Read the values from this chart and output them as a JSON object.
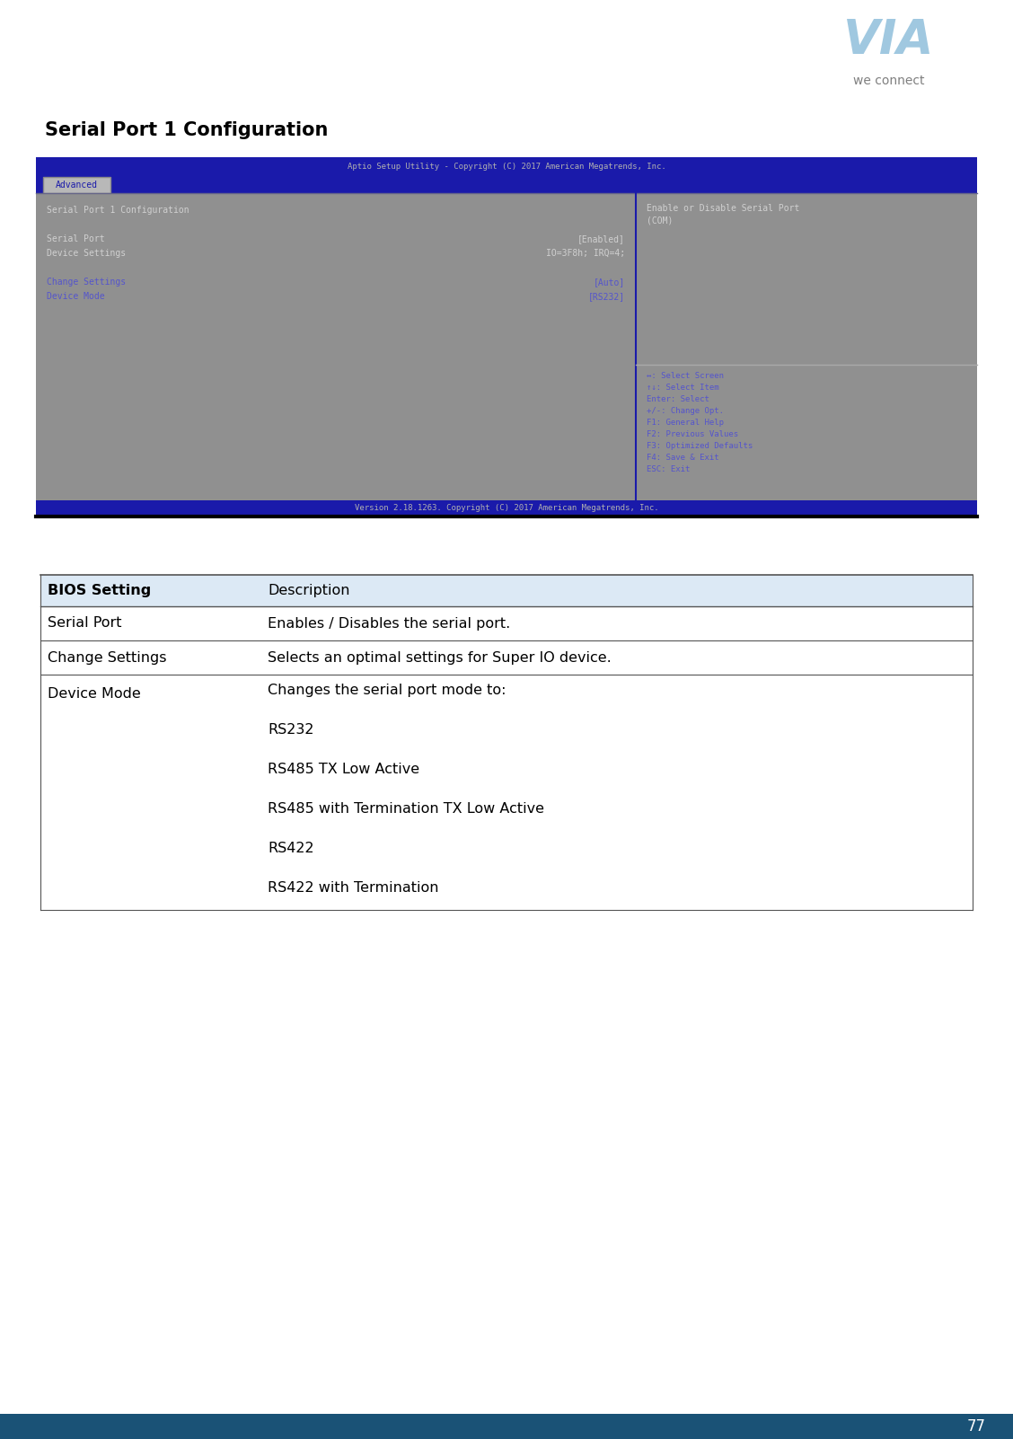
{
  "page_title": "Serial Port 1 Configuration",
  "page_number": "77",
  "background_color": "#ffffff",
  "title_fontsize": 15,
  "bios_header_bg": "#dce9f5",
  "bios_border_color": "#555555",
  "table_headers": [
    "BIOS Setting",
    "Description"
  ],
  "table_row1": [
    "Serial Port",
    "Enables / Disables the serial port."
  ],
  "table_row2": [
    "Change Settings",
    "Selects an optimal settings for Super IO device."
  ],
  "table_row3_col1": "Device Mode",
  "table_row3_col2_lines": [
    "Changes the serial port mode to:",
    "",
    "RS232",
    "",
    "RS485 TX Low Active",
    "",
    "RS485 with Termination TX Low Active",
    "",
    "RS422",
    "",
    "RS422 with Termination"
  ],
  "bios_screen_bg": "#909090",
  "bios_screen_border_color": "#1a1aaa",
  "bios_screen_header_bg": "#1a1aaa",
  "bios_screen_header_text": "Aptio Setup Utility - Copyright (C) 2017 American Megatrends, Inc.",
  "bios_screen_header_color": "#b0b0b0",
  "bios_tab_bg": "#b8b8b8",
  "bios_tab_text": "Advanced",
  "bios_tab_text_color": "#1a1aaa",
  "bios_menu_line_bg": "#1a1aaa",
  "bios_footer_bg": "#1a1aaa",
  "bios_footer_text": "Version 2.18.1263. Copyright (C) 2017 American Megatrends, Inc.",
  "bios_footer_text_color": "#b0b0b0",
  "bios_left_col1": [
    "Serial Port 1 Configuration",
    "",
    "Serial Port",
    "Device Settings",
    "",
    "Change Settings",
    "Device Mode"
  ],
  "bios_left_col1_colors": [
    "#d0d0d0",
    "",
    "#d0d0d0",
    "#d0d0d0",
    "",
    "#5555cc",
    "#5555cc"
  ],
  "bios_left_col2": [
    "",
    "",
    "[Enabled]",
    "IO=3F8h; IRQ=4;",
    "",
    "[Auto]",
    "[RS232]"
  ],
  "bios_left_col2_colors": [
    "",
    "",
    "#d0d0d0",
    "#d0d0d0",
    "",
    "#5555cc",
    "#5555cc"
  ],
  "bios_right_top_text": "Enable or Disable Serial Port\n(COM)",
  "bios_right_top_color": "#d0d0d0",
  "bios_right_bottom_lines": [
    "↔: Select Screen",
    "↑↓: Select Item",
    "Enter: Select",
    "+/-: Change Opt.",
    "F1: General Help",
    "F2: Previous Values",
    "F3: Optimized Defaults",
    "F4: Save & Exit",
    "ESC: Exit"
  ],
  "bios_right_bottom_color": "#5555cc",
  "logo_text_color": "#a0c8e0",
  "logo_subtext": "we connect",
  "logo_subtext_color": "#808080",
  "bottom_bar_color": "#1a5276",
  "page_num_color": "#ffffff"
}
